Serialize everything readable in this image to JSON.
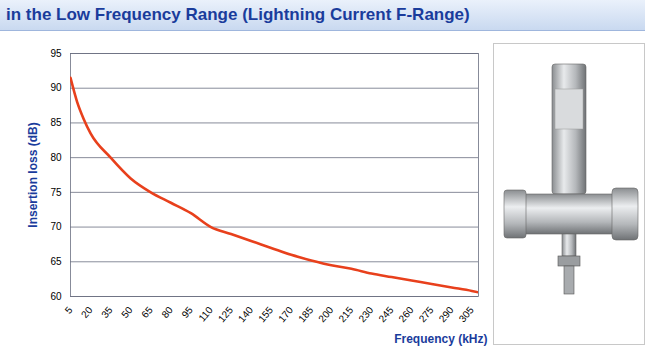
{
  "chart_data": {
    "type": "line",
    "title": "in the Low Frequency Range (Lightning Current F-Range)",
    "x_label": "Frequency (kHz)",
    "y_label": "Insertion loss (dB)",
    "x": [
      5,
      10,
      15,
      20,
      35,
      50,
      65,
      80,
      95,
      110,
      125,
      140,
      155,
      170,
      185,
      200,
      215,
      230,
      245,
      260,
      275,
      290,
      305,
      310
    ],
    "values": [
      91.5,
      88,
      85.5,
      83.5,
      80,
      77,
      75,
      73.5,
      72,
      70,
      69,
      68,
      67,
      66,
      65.2,
      64.5,
      64,
      63.3,
      62.8,
      62.3,
      61.8,
      61.3,
      60.8,
      60.6
    ],
    "color": "#e8401c",
    "xlim": [
      5,
      310
    ],
    "xticks": [
      5,
      20,
      35,
      50,
      65,
      80,
      95,
      110,
      125,
      140,
      155,
      170,
      185,
      200,
      215,
      230,
      245,
      260,
      275,
      290,
      305
    ],
    "ylim": [
      60,
      95
    ],
    "yticks": [
      60,
      65,
      70,
      75,
      80,
      85,
      90,
      95
    ],
    "grid": true
  }
}
